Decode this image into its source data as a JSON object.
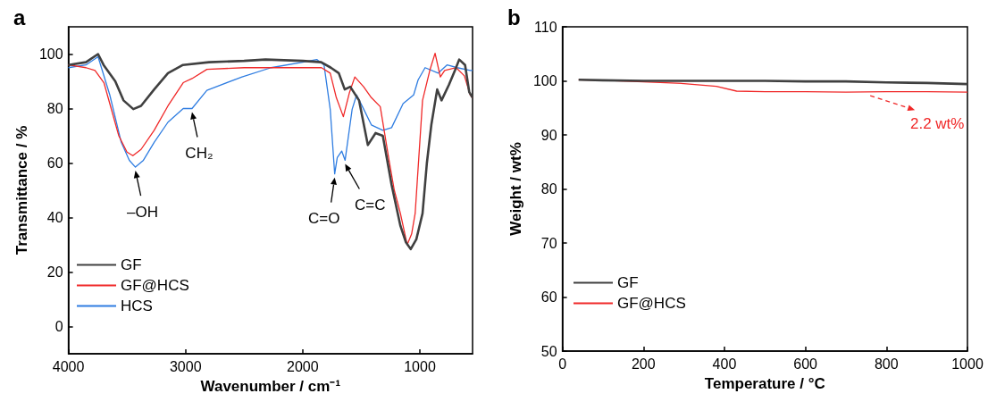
{
  "chart_data": [
    {
      "type": "line",
      "title": "a",
      "xlabel": "Wavenumber / cm⁻¹",
      "ylabel": "Transmittance / %",
      "xlim": [
        4000,
        550
      ],
      "xticks": [
        4000,
        3000,
        2000,
        1000
      ],
      "ylim": [
        -10,
        110
      ],
      "yticks": [
        0,
        20,
        40,
        60,
        80,
        100
      ],
      "grid": false,
      "legend": "bottom left",
      "marker": "none",
      "line_style": "solid",
      "annotations": [
        {
          "text": "–OH",
          "x": 3428,
          "y": 58.5
        },
        {
          "text": "CH₂",
          "x": 2945,
          "y": 80
        },
        {
          "text": "C=O",
          "x": 1727,
          "y": 56
        },
        {
          "text": "C=C",
          "x": 1638,
          "y": 61
        }
      ],
      "series": [
        {
          "name": "GF",
          "color": "#404040",
          "x": [
            4000,
            3850,
            3747,
            3700,
            3600,
            3530,
            3446,
            3380,
            3268,
            3150,
            3022,
            2800,
            2500,
            2318,
            2000,
            1842,
            1760,
            1692,
            1641,
            1594,
            1519,
            1444,
            1378,
            1316,
            1241,
            1166,
            1120,
            1078,
            1030,
            977,
            940,
            902,
            852,
            815,
            752,
            700,
            664,
            614,
            578,
            550
          ],
          "values": [
            96,
            97,
            100,
            96,
            90,
            83,
            79.8,
            81,
            87,
            93,
            96,
            97,
            97.5,
            98,
            97.5,
            97,
            95,
            93,
            87,
            88,
            83,
            66.6,
            71,
            70,
            52,
            37,
            31,
            28.4,
            32,
            41.5,
            60,
            74,
            87,
            83,
            88.7,
            94,
            98,
            96,
            86,
            84
          ]
        },
        {
          "name": "GF@HCS",
          "color": "#f02828",
          "x": [
            4000,
            3850,
            3773,
            3697,
            3570,
            3500,
            3450,
            3380,
            3268,
            3150,
            3020,
            2945,
            2818,
            2500,
            2200,
            1840,
            1765,
            1713,
            1653,
            1600,
            1555,
            1480,
            1414,
            1338,
            1263,
            1218,
            1166,
            1108,
            1070,
            1040,
            977,
            915,
            870,
            825,
            788,
            690,
            620,
            570,
            550
          ],
          "values": [
            96,
            95,
            94,
            89.5,
            70,
            64,
            62.7,
            65,
            72,
            81,
            89.5,
            91,
            94.4,
            95,
            95,
            95,
            93,
            84,
            77,
            86,
            91.6,
            88,
            84,
            80.7,
            61,
            50,
            41.5,
            30,
            34,
            41.5,
            83,
            94,
            100.3,
            91.6,
            94,
            95,
            92,
            85,
            84
          ]
        },
        {
          "name": "HCS",
          "color": "#2f7de1",
          "x": [
            4000,
            3850,
            3747,
            3647,
            3549,
            3480,
            3428,
            3360,
            3268,
            3150,
            3020,
            2945,
            2818,
            2518,
            2270,
            2000,
            1880,
            1818,
            1765,
            1727,
            1705,
            1667,
            1638,
            1578,
            1540,
            1490,
            1414,
            1316,
            1241,
            1143,
            1053,
            1015,
            955,
            843,
            768,
            680,
            570,
            550
          ],
          "values": [
            95,
            96,
            99,
            85,
            67.6,
            61,
            58.5,
            61,
            67.6,
            75,
            80,
            80,
            86.7,
            91.6,
            95,
            97,
            98,
            96,
            79.7,
            56,
            62,
            64.4,
            61,
            79.7,
            85,
            80.7,
            74,
            72,
            73,
            81.8,
            85,
            90.5,
            95,
            93,
            96,
            95,
            94,
            94
          ]
        }
      ]
    },
    {
      "type": "line",
      "title": "b",
      "xlabel": "Temperature / °C",
      "ylabel": "Weight / wt%",
      "xlim": [
        0,
        1000
      ],
      "xticks": [
        0,
        200,
        400,
        600,
        800,
        1000
      ],
      "ylim": [
        50,
        110
      ],
      "yticks": [
        50,
        60,
        70,
        80,
        90,
        100,
        110
      ],
      "grid": false,
      "legend": "bottom left",
      "marker": "none",
      "line_style": "solid",
      "annotations": [
        {
          "text": "2.2 wt%",
          "x": 760,
          "y": 97.9
        }
      ],
      "series": [
        {
          "name": "GF",
          "color": "#404040",
          "x": [
            40,
            100,
            200,
            300,
            400,
            500,
            600,
            700,
            800,
            900,
            1000
          ],
          "values": [
            100.2,
            100.1,
            100,
            100,
            100,
            100,
            99.9,
            99.9,
            99.7,
            99.6,
            99.4
          ]
        },
        {
          "name": "GF@HCS",
          "color": "#f02828",
          "x": [
            40,
            100,
            200,
            300,
            380,
            430,
            500,
            600,
            700,
            800,
            900,
            1000
          ],
          "values": [
            100.2,
            100.1,
            99.8,
            99.5,
            99,
            98.1,
            98,
            98,
            97.9,
            98,
            98,
            97.9
          ]
        }
      ]
    }
  ]
}
